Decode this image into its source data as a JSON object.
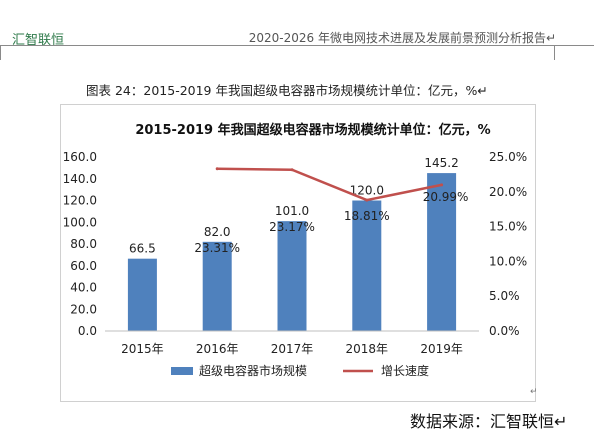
{
  "header": {
    "left": "汇智联恒",
    "right": "2020-2026 年微电网技术进展及发展前景预测分析报告↵"
  },
  "figure_caption": "图表 24：2015-2019 年我国超级电容器市场规模统计单位：亿元，%↵",
  "source": "数据来源：汇智联恒↵",
  "para_mark": "↵",
  "colors": {
    "bar": "#4f81bd",
    "line": "#c0504d",
    "grid": "#d9d9d9"
  },
  "chart_data": {
    "type": "bar",
    "title": "2015-2019 年我国超级电容器市场规模统计单位：亿元，%",
    "categories": [
      "2015年",
      "2016年",
      "2017年",
      "2018年",
      "2019年"
    ],
    "series": [
      {
        "name": "超级电容器市场规模",
        "type": "bar",
        "axis": "left",
        "values": [
          66.5,
          82.0,
          101.0,
          120.0,
          145.2
        ],
        "labels": [
          "66.5",
          "82.0",
          "101.0",
          "120.0",
          "145.2"
        ]
      },
      {
        "name": "增长速度",
        "type": "line",
        "axis": "right",
        "values": [
          null,
          23.31,
          23.17,
          18.81,
          20.99
        ],
        "labels": [
          "",
          "23.31%",
          "23.17%",
          "18.81%",
          "20.99%"
        ]
      }
    ],
    "y_left": {
      "min": 0,
      "max": 160,
      "step": 20,
      "ticks": [
        "0.0",
        "20.0",
        "40.0",
        "60.0",
        "80.0",
        "100.0",
        "120.0",
        "140.0",
        "160.0"
      ]
    },
    "y_right": {
      "min": 0,
      "max": 25,
      "step": 5,
      "ticks": [
        "0.0%",
        "5.0%",
        "10.0%",
        "15.0%",
        "20.0%",
        "25.0%"
      ]
    },
    "grid": false,
    "legend": "bottom"
  }
}
